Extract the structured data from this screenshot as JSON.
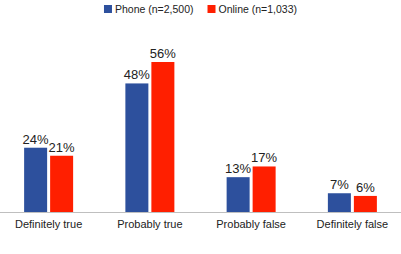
{
  "chart_data": {
    "type": "bar",
    "categories": [
      "Definitely true",
      "Probably true",
      "Probably false",
      "Definitely false"
    ],
    "series": [
      {
        "name": "Phone (n=2,500)",
        "color": "#2d509d",
        "values": [
          24,
          48,
          13,
          7
        ],
        "value_labels": [
          "24%",
          "48%",
          "13%",
          "7%"
        ]
      },
      {
        "name": "Online (n=1,033)",
        "color": "#ff1f00",
        "values": [
          21,
          56,
          17,
          6
        ],
        "value_labels": [
          "21%",
          "56%",
          "17%",
          "6%"
        ]
      }
    ],
    "data_labels": true,
    "tick_labels": "x",
    "legend": "top"
  }
}
